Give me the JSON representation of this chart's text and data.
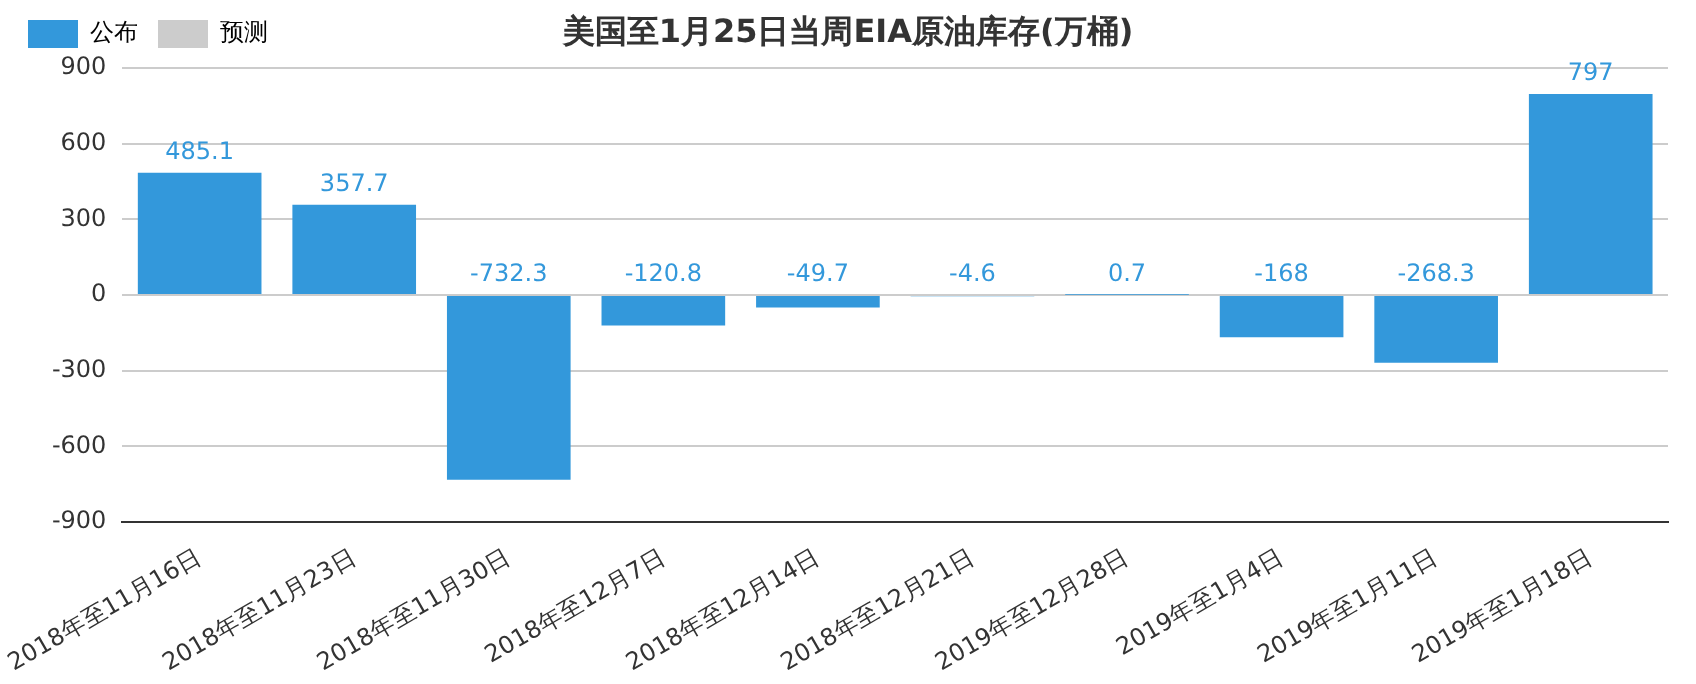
{
  "chart_data": {
    "type": "bar",
    "title": "美国至1月25日当周EIA原油库存(万桶)",
    "categories": [
      "2018年至11月16日",
      "2018年至11月23日",
      "2018年至11月30日",
      "2018年至12月7日",
      "2018年至12月14日",
      "2018年至12月21日",
      "2019年至12月28日",
      "2019年至1月4日",
      "2019年至1月11日",
      "2019年至1月18日"
    ],
    "series": [
      {
        "name": "公布",
        "color": "#3398db",
        "values": [
          485.1,
          357.7,
          -732.3,
          -120.8,
          -49.7,
          -4.6,
          0.7,
          -168,
          -268.3,
          797
        ]
      },
      {
        "name": "预测",
        "color": "#cccccc",
        "values": [
          null,
          null,
          null,
          null,
          null,
          null,
          null,
          null,
          null,
          null
        ]
      }
    ],
    "ylim": [
      -900,
      900
    ],
    "yticks": [
      -900,
      -600,
      -300,
      0,
      300,
      600,
      900
    ],
    "grid": "y",
    "legend": "top left",
    "data_labels": true
  }
}
